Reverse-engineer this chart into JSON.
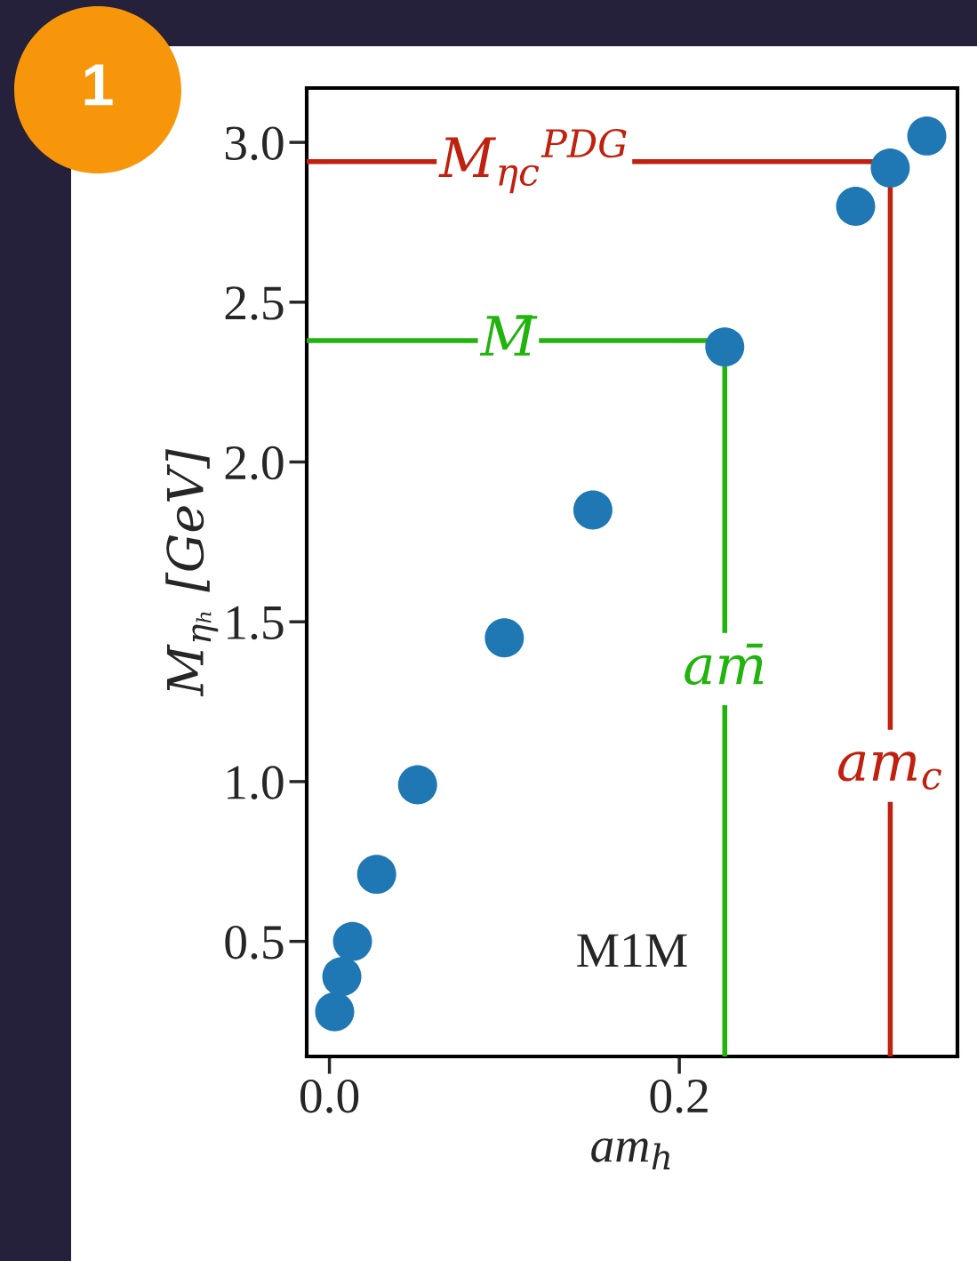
{
  "chart_data": {
    "type": "scatter",
    "xlabel": "am$_{h}$",
    "ylabel": "M$_{ηₕ}$ [GeV]",
    "x": [
      0.003,
      0.0071,
      0.0132,
      0.027,
      0.0504,
      0.1,
      0.1506,
      0.226,
      0.3008,
      0.3206,
      0.3415
    ],
    "series": [
      {
        "color": "#1f77b4",
        "values": [
          0.28,
          0.39,
          0.5,
          0.71,
          0.99,
          1.45,
          1.85,
          2.36,
          2.8,
          2.92,
          3.02
        ]
      }
    ],
    "marker": "circle",
    "xlim": [
      -0.013,
      0.359
    ],
    "ylim": [
      0.14,
      3.17
    ],
    "xticks": [
      {
        "value": 0,
        "label": "0.0"
      },
      {
        "value": 0.2,
        "label": "0.2"
      }
    ],
    "yticks": [
      {
        "value": 0.5,
        "label": "0.5"
      },
      {
        "value": 1,
        "label": "1.0"
      },
      {
        "value": 1.5,
        "label": "1.5"
      },
      {
        "value": 2,
        "label": "2.0"
      },
      {
        "value": 2.5,
        "label": "2.5"
      },
      {
        "value": 3,
        "label": "3.0"
      }
    ],
    "ref_lines": [
      {
        "axis": "y",
        "value": 2.94,
        "label": "M$_{ηc}$$^{PDG}$",
        "color": "#c0210f"
      },
      {
        "axis": "x",
        "value": 0.3206,
        "label": "am$_{c}$",
        "color": "#c0210f"
      },
      {
        "axis": "y",
        "value": 2.38,
        "label": "M̄",
        "color": "#22b30e"
      },
      {
        "axis": "x",
        "value": 0.226,
        "label": "am̄",
        "color": "#22b30e"
      }
    ],
    "annotations": [
      "M1M",
      "1"
    ],
    "grid": false,
    "legend": false
  }
}
